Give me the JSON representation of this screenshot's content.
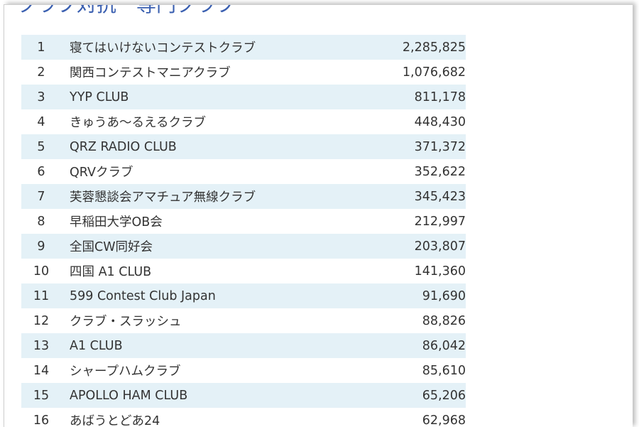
{
  "page": {
    "title": "クラブ対抗　専門クラブ"
  },
  "table": {
    "rows": [
      {
        "rank": "1",
        "name": "寝てはいけないコンテストクラブ",
        "score": "2,285,825"
      },
      {
        "rank": "2",
        "name": "関西コンテストマニアクラブ",
        "score": "1,076,682"
      },
      {
        "rank": "3",
        "name": "YYP CLUB",
        "score": "811,178"
      },
      {
        "rank": "4",
        "name": "きゅうあ～るえるクラブ",
        "score": "448,430"
      },
      {
        "rank": "5",
        "name": "QRZ RADIO CLUB",
        "score": "371,372"
      },
      {
        "rank": "6",
        "name": "QRVクラブ",
        "score": "352,622"
      },
      {
        "rank": "7",
        "name": "芙蓉懇談会アマチュア無線クラブ",
        "score": "345,423"
      },
      {
        "rank": "8",
        "name": "早稲田大学OB会",
        "score": "212,997"
      },
      {
        "rank": "9",
        "name": "全国CW同好会",
        "score": "203,807"
      },
      {
        "rank": "10",
        "name": "四国 A1 CLUB",
        "score": "141,360"
      },
      {
        "rank": "11",
        "name": "599 Contest Club Japan",
        "score": "91,690"
      },
      {
        "rank": "12",
        "name": "クラブ・スラッシュ",
        "score": "88,826"
      },
      {
        "rank": "13",
        "name": "A1 CLUB",
        "score": "86,042"
      },
      {
        "rank": "14",
        "name": "シャープハムクラブ",
        "score": "85,610"
      },
      {
        "rank": "15",
        "name": "APOLLO HAM CLUB",
        "score": "65,206"
      },
      {
        "rank": "16",
        "name": "あばうとどあ24",
        "score": "62,968"
      }
    ]
  },
  "colors": {
    "title": "#3a5fb0",
    "row_stripe": "#e4f1f7",
    "text": "#333333"
  }
}
